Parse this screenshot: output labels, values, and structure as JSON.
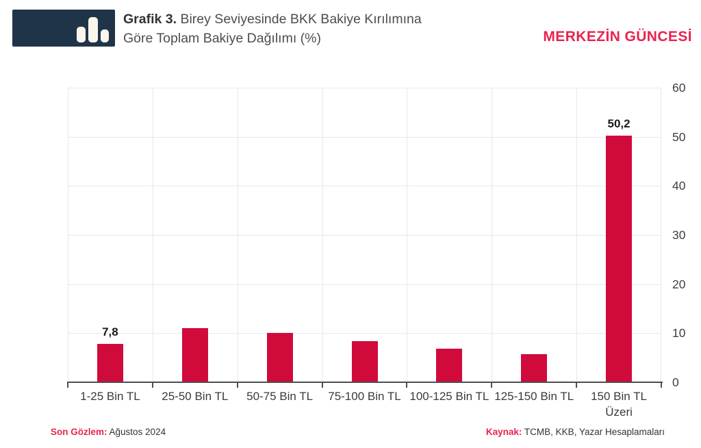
{
  "header": {
    "title_prefix": "Grafik 3.",
    "title_text": " Birey Seviyesinde BKK Bakiye Kırılımına\nGöre Toplam Bakiye Dağılımı (%)",
    "brand": "MERKEZİN GÜNCESİ"
  },
  "colors": {
    "bar": "#d10a3c",
    "accent_text": "#e8244e",
    "logo_bg": "#203449",
    "grid": "#e8e8e8",
    "axis": "#4d4d4d"
  },
  "chart_data": {
    "type": "bar",
    "title": "Grafik 3. Birey Seviyesinde BKK Bakiye Kırılımına Göre Toplam Bakiye Dağılımı (%)",
    "categories": [
      "1-25 Bin TL",
      "25-50 Bin TL",
      "50-75 Bin TL",
      "75-100 Bin TL",
      "100-125 Bin TL",
      "125-150 Bin TL",
      "150 Bin TL\nÜzeri"
    ],
    "values": [
      7.8,
      11.0,
      10.0,
      8.4,
      6.8,
      5.7,
      50.2
    ],
    "data_labels": [
      "7,8",
      null,
      null,
      null,
      null,
      null,
      "50,2"
    ],
    "xlabel": "",
    "ylabel": "",
    "ylim": [
      0,
      60
    ],
    "yticks": [
      0,
      10,
      20,
      30,
      40,
      50,
      60
    ],
    "ytick_side": "right",
    "grid": true,
    "legend": false
  },
  "footer": {
    "left_label": "Son Gözlem:",
    "left_value": " Ağustos 2024",
    "right_label": "Kaynak:",
    "right_value": " TCMB, KKB, Yazar Hesaplamaları"
  }
}
